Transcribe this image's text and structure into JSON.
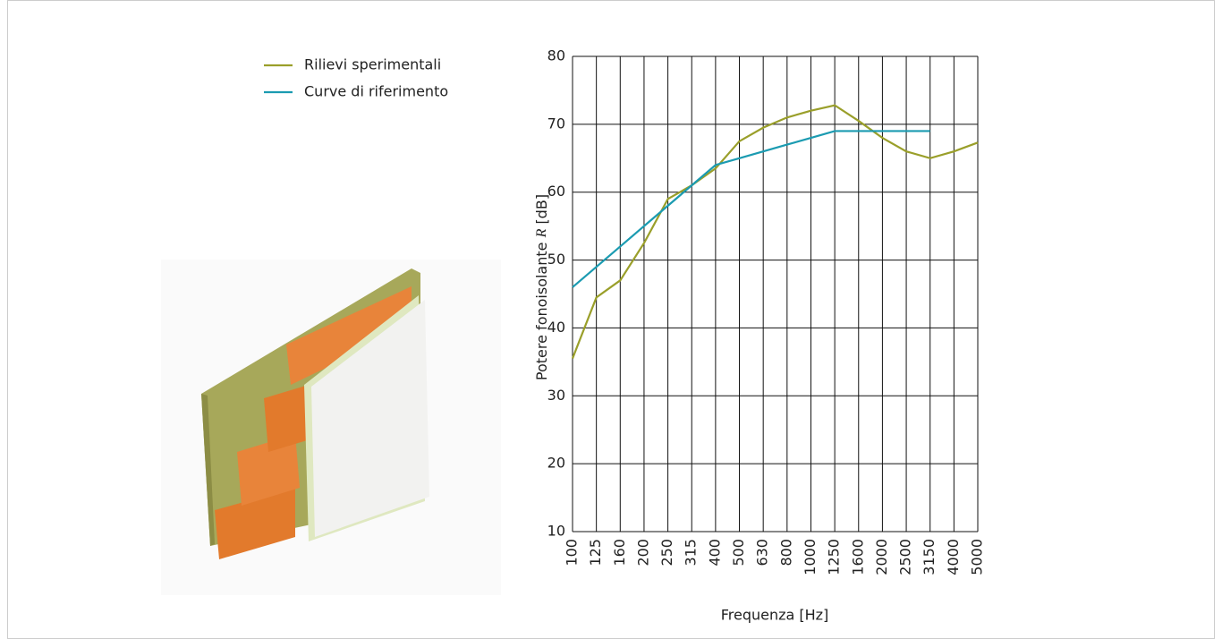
{
  "chart_data": {
    "type": "line",
    "y_label_parts": [
      "Potere fonoisolante ",
      "R",
      " [dB]"
    ],
    "x_label": "Frequenza [Hz]",
    "categories": [
      "100",
      "125",
      "160",
      "200",
      "250",
      "315",
      "400",
      "500",
      "630",
      "800",
      "1000",
      "1250",
      "1600",
      "2000",
      "2500",
      "3150",
      "4000",
      "5000"
    ],
    "series": [
      {
        "name": "Rilievi sperimentali",
        "color": "#9a9f2a",
        "values": [
          35.5,
          44.5,
          47,
          52.5,
          59,
          61,
          63.5,
          67.5,
          69.5,
          71,
          72,
          72.8,
          70.5,
          68,
          66,
          65,
          66,
          67.3
        ]
      },
      {
        "name": "Curve di riferimento",
        "color": "#1b9bb1",
        "values": [
          46,
          49,
          52,
          55,
          58,
          61,
          64,
          65,
          66,
          67,
          68,
          69,
          69,
          69,
          69,
          69,
          null,
          null
        ]
      }
    ],
    "ylim": [
      10,
      80
    ],
    "yticks": [
      10,
      20,
      30,
      40,
      50,
      60,
      70,
      80
    ],
    "grid": true
  }
}
